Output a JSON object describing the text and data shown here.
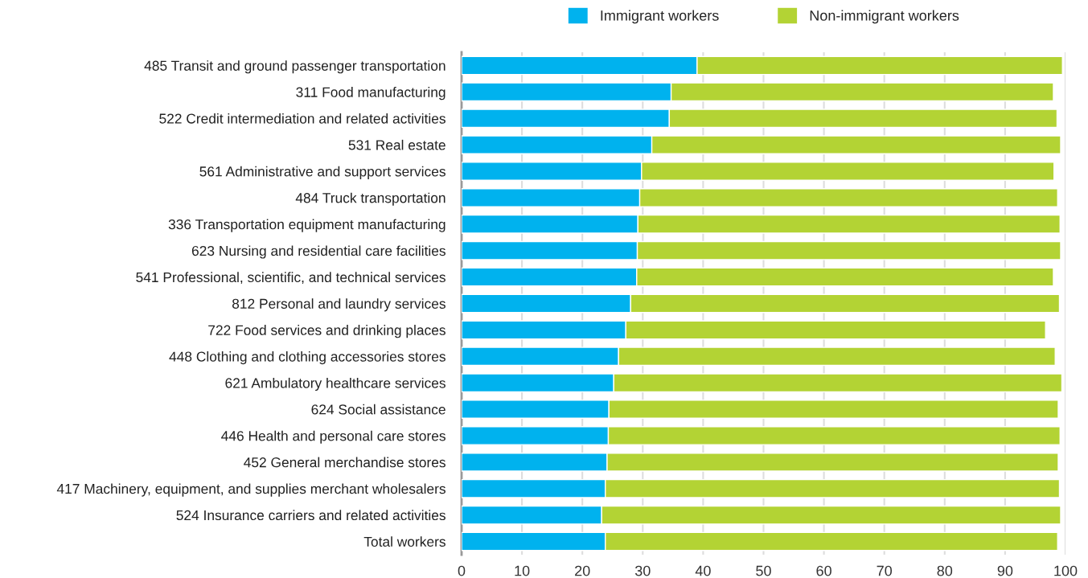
{
  "chart_data": {
    "type": "bar",
    "orientation": "horizontal",
    "stacked": true,
    "categories": [
      "485 Transit and ground passenger transportation",
      "311 Food manufacturing",
      "522 Credit intermediation and related activities",
      "531 Real estate",
      "561 Administrative and support services",
      "484 Truck transportation",
      "336 Transportation equipment manufacturing",
      "623 Nursing and residential care facilities",
      "541 Professional, scientific, and technical services",
      "812 Personal and laundry services",
      "722 Food services and drinking places",
      "448 Clothing and clothing accessories stores",
      "621 Ambulatory healthcare services",
      "624 Social assistance",
      "446 Health and personal care stores",
      "452 General merchandise stores",
      "417 Machinery, equipment, and supplies merchant wholesalers",
      "524 Insurance carriers and related activities",
      "Total workers"
    ],
    "series": [
      {
        "name": "Immigrant workers",
        "color": "#00b2ee",
        "values": [
          39.0,
          34.7,
          34.4,
          31.5,
          29.8,
          29.5,
          29.2,
          29.1,
          29.0,
          28.0,
          27.2,
          26.0,
          25.2,
          24.4,
          24.3,
          24.1,
          23.8,
          23.2,
          23.8
        ]
      },
      {
        "name": "Non-immigrant workers",
        "color": "#b3d334",
        "values": [
          60.5,
          63.3,
          64.2,
          67.7,
          68.3,
          69.2,
          69.9,
          70.1,
          69.0,
          71.0,
          69.5,
          72.3,
          74.2,
          74.4,
          74.8,
          74.7,
          75.2,
          76.0,
          74.9
        ]
      }
    ],
    "xlim": [
      0,
      100
    ],
    "xticks": [
      0,
      10,
      20,
      30,
      40,
      50,
      60,
      70,
      80,
      90,
      100
    ],
    "grid": "x",
    "legend": "top"
  }
}
